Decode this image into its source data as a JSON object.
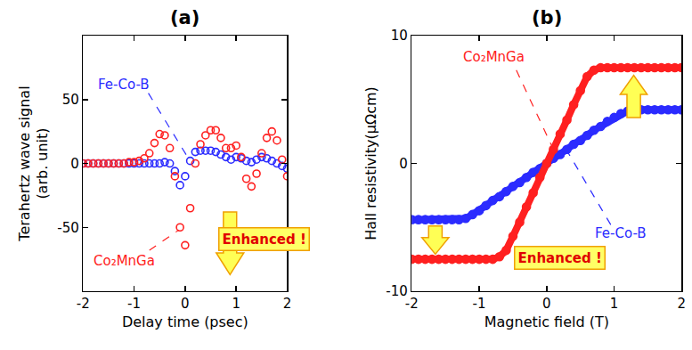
{
  "chart_data": [
    {
      "type": "scatter",
      "title": "(a)",
      "x_label": "Delay time (psec)",
      "y_label": "Terahertz wave signal\n(arb. unit)",
      "xlim": [
        -2,
        2
      ],
      "xticks": [
        -2,
        -1,
        0,
        1,
        2
      ],
      "ylim": [
        -100,
        100
      ],
      "yticks": [
        -50,
        0,
        50
      ],
      "grid": false,
      "marker": "open circle",
      "x": [
        -2.0,
        -1.9,
        -1.8,
        -1.7,
        -1.6,
        -1.5,
        -1.4,
        -1.3,
        -1.2,
        -1.1,
        -1.0,
        -0.9,
        -0.8,
        -0.7,
        -0.6,
        -0.5,
        -0.4,
        -0.3,
        -0.2,
        -0.1,
        0.0,
        0.1,
        0.2,
        0.3,
        0.4,
        0.5,
        0.6,
        0.7,
        0.8,
        0.9,
        1.0,
        1.1,
        1.2,
        1.3,
        1.4,
        1.5,
        1.6,
        1.7,
        1.8,
        1.9,
        2.0
      ],
      "series": [
        {
          "name": "Fe-Co-B",
          "color": "#2b2bff",
          "values": [
            0,
            0,
            0,
            0,
            0,
            0,
            0,
            0,
            0,
            0,
            0,
            0,
            0,
            0,
            0,
            0,
            1,
            0,
            -6,
            -17,
            -10,
            2,
            9,
            10,
            10,
            10,
            9,
            7,
            5,
            3,
            5,
            4,
            2,
            1,
            3,
            5,
            4,
            2,
            0,
            -2,
            -4
          ]
        },
        {
          "name": "Co₂MnGa",
          "color": "#ff2020",
          "values": [
            0,
            0,
            0,
            0,
            0,
            0,
            0,
            0,
            0,
            1,
            1,
            2,
            4,
            8,
            16,
            23,
            22,
            12,
            -10,
            -50,
            -64,
            -35,
            0,
            15,
            22,
            26,
            26,
            20,
            12,
            12,
            14,
            5,
            -12,
            -18,
            -8,
            8,
            20,
            25,
            18,
            3,
            -10
          ]
        }
      ],
      "annotations": [
        "Enhanced !"
      ]
    },
    {
      "type": "scatter",
      "title": "(b)",
      "x_label": "Magnetic field (T)",
      "y_label": "Hall resistivity(μΩcm)",
      "xlim": [
        -2,
        2
      ],
      "xticks": [
        -2,
        -1,
        0,
        1,
        2
      ],
      "ylim": [
        -10,
        10
      ],
      "yticks": [
        -10,
        0,
        10
      ],
      "grid": false,
      "marker": "circle",
      "line_style": "solid",
      "x": [
        -2.0,
        -1.9,
        -1.8,
        -1.7,
        -1.6,
        -1.5,
        -1.4,
        -1.3,
        -1.2,
        -1.1,
        -1.0,
        -0.9,
        -0.8,
        -0.7,
        -0.6,
        -0.5,
        -0.4,
        -0.3,
        -0.2,
        -0.1,
        0.0,
        0.1,
        0.2,
        0.3,
        0.4,
        0.5,
        0.6,
        0.7,
        0.8,
        0.9,
        1.0,
        1.1,
        1.2,
        1.3,
        1.4,
        1.5,
        1.6,
        1.7,
        1.8,
        1.9,
        2.0
      ],
      "series": [
        {
          "name": "Fe-Co-B",
          "color": "#2b2bff",
          "values": [
            -4.4,
            -4.4,
            -4.4,
            -4.4,
            -4.4,
            -4.4,
            -4.4,
            -4.4,
            -4.3,
            -4.0,
            -3.7,
            -3.3,
            -2.9,
            -2.6,
            -2.2,
            -1.8,
            -1.5,
            -1.1,
            -0.7,
            -0.4,
            0,
            0.4,
            0.7,
            1.1,
            1.5,
            1.8,
            2.2,
            2.6,
            2.9,
            3.3,
            3.6,
            3.9,
            4.1,
            4.2,
            4.2,
            4.2,
            4.2,
            4.2,
            4.2,
            4.2,
            4.2
          ]
        },
        {
          "name": "Co₂MnGa",
          "color": "#ff2020",
          "values": [
            -7.5,
            -7.5,
            -7.5,
            -7.5,
            -7.5,
            -7.5,
            -7.5,
            -7.5,
            -7.5,
            -7.5,
            -7.5,
            -7.5,
            -7.5,
            -7.3,
            -6.8,
            -5.7,
            -4.6,
            -3.4,
            -2.3,
            -1.1,
            0,
            1.1,
            2.3,
            3.4,
            4.6,
            5.7,
            6.8,
            7.3,
            7.5,
            7.5,
            7.5,
            7.5,
            7.5,
            7.5,
            7.5,
            7.5,
            7.5,
            7.5,
            7.5,
            7.5,
            7.5
          ]
        }
      ],
      "annotations": [
        "Enhanced !"
      ]
    }
  ]
}
